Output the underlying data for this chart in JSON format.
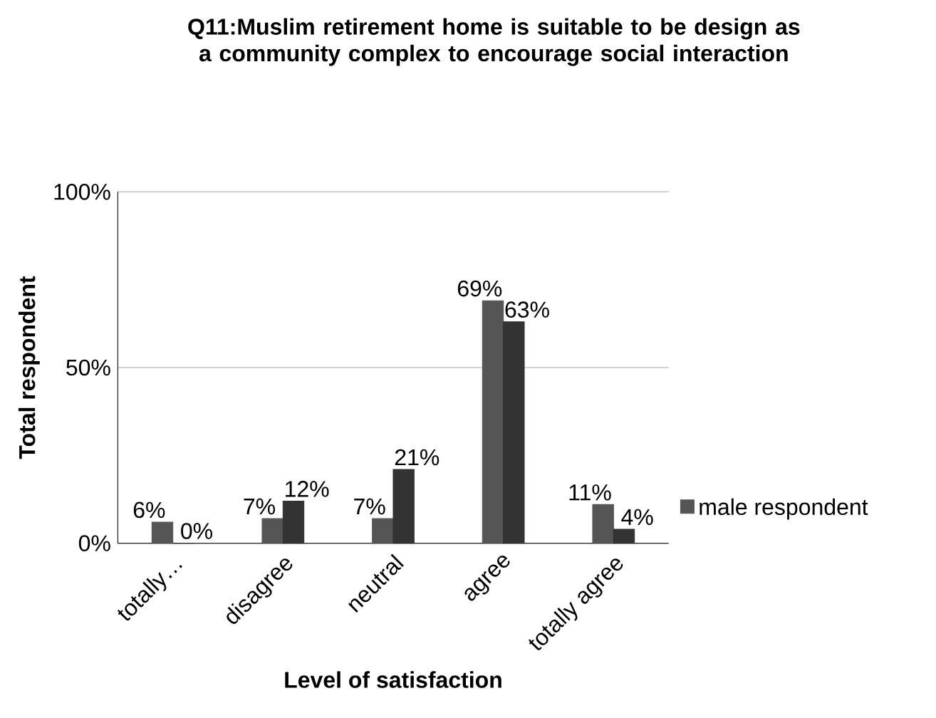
{
  "chart_data": {
    "type": "bar",
    "title": "Q11:Muslim retirement home is suitable to be design as a community complex to encourage social interaction",
    "xlabel": "Level of satisfaction",
    "ylabel": "Total respondent",
    "categories": [
      "totally…",
      "disagree",
      "neutral",
      "agree",
      "totally agree"
    ],
    "series": [
      {
        "name": "male respondent",
        "color": "#555555",
        "values": [
          6,
          7,
          7,
          69,
          11
        ],
        "value_labels": [
          "6%",
          "7%",
          "7%",
          "69%",
          "11%"
        ]
      },
      {
        "color": "#333333",
        "values": [
          0,
          12,
          21,
          63,
          4
        ],
        "value_labels": [
          "0%",
          "12%",
          "21%",
          "63%",
          "4%"
        ]
      }
    ],
    "ylim": [
      0,
      100
    ],
    "yticks": [
      {
        "value": 0,
        "label": "0%"
      },
      {
        "value": 50,
        "label": "50%"
      },
      {
        "value": 100,
        "label": "100%"
      }
    ],
    "grid": "y",
    "legend": "right"
  }
}
